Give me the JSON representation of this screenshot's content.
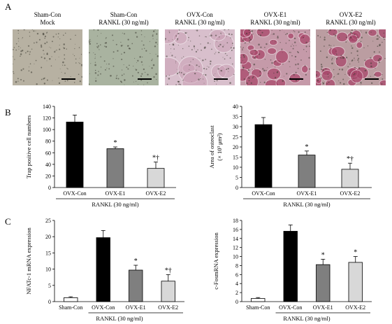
{
  "panels": {
    "a": {
      "letter": "A",
      "images": [
        {
          "line1": "Sham-Con",
          "line2": "Mock",
          "tone": "#b7b1a2",
          "stain": "none"
        },
        {
          "line1": "Sham-Con",
          "line2": "RANKL (30 ng/ml)",
          "tone": "#a9b3a0",
          "stain": "none"
        },
        {
          "line1": "OVX-Con",
          "line2": "RANKL (30 ng/ml)",
          "tone": "#d8bfcc",
          "stain": "light"
        },
        {
          "line1": "OVX-E1",
          "line2": "RANKL (30 ng/ml)",
          "tone": "#c59aa9",
          "stain": "heavy"
        },
        {
          "line1": "OVX-E2",
          "line2": "RANKL (30 ng/ml)",
          "tone": "#bb9da1",
          "stain": "heavy"
        }
      ]
    },
    "b": {
      "letter": "B"
    },
    "c": {
      "letter": "C"
    }
  },
  "chart_data": [
    {
      "type": "bar",
      "panel": "B",
      "categories": [
        "OVX-Con",
        "OVX-E1",
        "OVX-E2"
      ],
      "values": [
        113,
        67,
        33
      ],
      "errors": [
        12,
        3,
        11
      ],
      "annotations": [
        "",
        "*",
        "*†"
      ],
      "colors": [
        "#000000",
        "#7f7f7f",
        "#d8d8d8"
      ],
      "ylabel": "Trap positive cell numbers",
      "ylim": [
        0,
        140
      ],
      "yticks": [
        0,
        20,
        40,
        60,
        80,
        100,
        120,
        140
      ],
      "group_label": "RANKL (30 ng/ml)"
    },
    {
      "type": "bar",
      "panel": "B",
      "categories": [
        "OVX-Con",
        "OVX-E1",
        "OVX-E2"
      ],
      "values": [
        31,
        16,
        9
      ],
      "errors": [
        3.5,
        2,
        3
      ],
      "annotations": [
        "",
        "*",
        "*†"
      ],
      "colors": [
        "#000000",
        "#7f7f7f",
        "#d8d8d8"
      ],
      "ylabel": "Area of osteoclast",
      "ylabel2": "(× 10³ μm²)",
      "ylim": [
        0,
        40
      ],
      "yticks": [
        0,
        5,
        10,
        15,
        20,
        25,
        30,
        35,
        40
      ],
      "group_label": "RANKL (30 ng/ml)"
    },
    {
      "type": "bar",
      "panel": "C",
      "categories": [
        "Sham-Con",
        "OVX-Con",
        "OVX-E1",
        "OVX-E2"
      ],
      "values": [
        1.2,
        19.7,
        9.7,
        6.3
      ],
      "errors": [
        0.3,
        2.2,
        1.5,
        2
      ],
      "annotations": [
        "",
        "",
        "*",
        "*†"
      ],
      "colors": [
        "#ffffff",
        "#000000",
        "#7f7f7f",
        "#d8d8d8"
      ],
      "ylabel": "NFATc-1 mRNA expression",
      "ylim": [
        0,
        25
      ],
      "yticks": [
        0,
        5,
        10,
        15,
        20,
        25
      ],
      "group_label": "RANKL (30 ng/ml)"
    },
    {
      "type": "bar",
      "panel": "C",
      "categories": [
        "Sham-Con",
        "OVX-Con",
        "OVX-E1",
        "OVX-E2"
      ],
      "values": [
        0.7,
        15.6,
        8.2,
        8.7
      ],
      "errors": [
        0.2,
        1.4,
        1.2,
        1.3
      ],
      "annotations": [
        "",
        "",
        "*",
        "*"
      ],
      "colors": [
        "#ffffff",
        "#000000",
        "#7f7f7f",
        "#d8d8d8"
      ],
      "ylabel": "c-FosmRNA expression",
      "ylim": [
        0,
        18
      ],
      "yticks": [
        0,
        2,
        4,
        6,
        8,
        10,
        12,
        14,
        16,
        18
      ],
      "group_label": "RANKL (30 ng/ml)"
    }
  ]
}
